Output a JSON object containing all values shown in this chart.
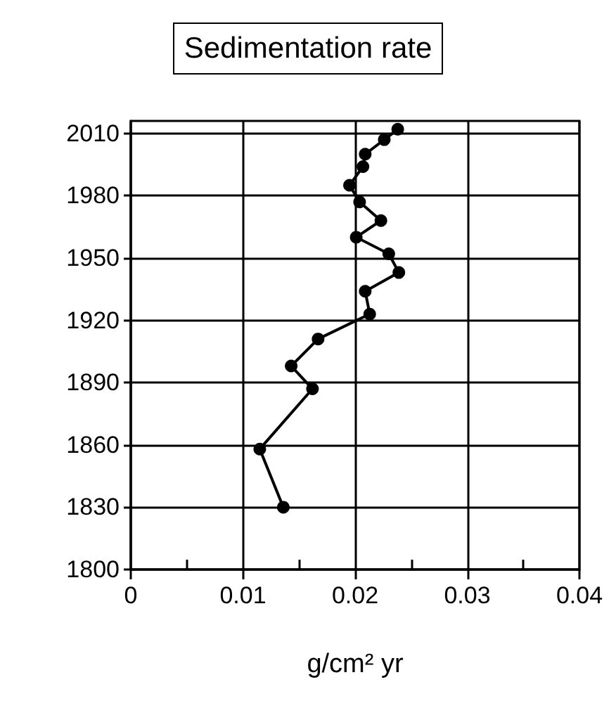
{
  "chart_data": {
    "type": "line",
    "title": "Sedimentation rate",
    "xlabel": "g/cm² yr",
    "series": [
      {
        "color": "#000000",
        "x": [
          0.0238,
          0.0226,
          0.0209,
          0.0207,
          0.0195,
          0.0204,
          0.0223,
          0.0201,
          0.023,
          0.0239,
          0.0209,
          0.0213,
          0.0167,
          0.0143,
          0.0162,
          0.0115,
          0.0136
        ],
        "values": [
          2012,
          2007,
          2000,
          1994,
          1985,
          1977,
          1968,
          1960,
          1952,
          1943,
          1934,
          1923,
          1911,
          1898,
          1887,
          1858,
          1830
        ]
      }
    ],
    "xlim": [
      0,
      0.04
    ],
    "xticks": [
      0,
      {
        "value": 0.005,
        "label": null
      },
      0.01,
      {
        "value": 0.015,
        "label": null
      },
      0.02,
      {
        "value": 0.025,
        "label": null
      },
      0.03,
      {
        "value": 0.035,
        "label": null
      },
      0.04
    ],
    "ylim": [
      1800,
      2016
    ],
    "yticks": [
      1800,
      1830,
      1860,
      1890,
      1920,
      1950,
      1980,
      2010
    ],
    "grid": true,
    "marker": "circle",
    "line_style": "solid"
  }
}
